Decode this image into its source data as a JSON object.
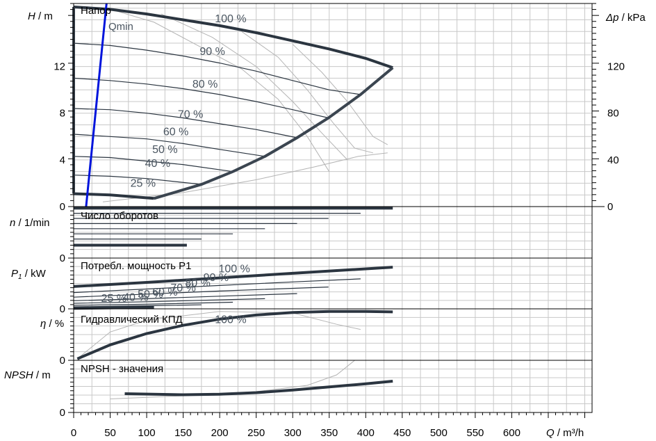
{
  "colors": {
    "grid": "#c8c8c8",
    "axis": "#000000",
    "max_curve": "#3b4550",
    "speed_curve": "#2b3540",
    "efficiency_curve": "#b4b4b4",
    "qmin_line": "#0014dc",
    "curve_label": "#4a5560"
  },
  "x_axis": {
    "label_italic": "Q",
    "label_unit": " / m³/h",
    "ticks": [
      0,
      50,
      100,
      150,
      200,
      250,
      300,
      350,
      400,
      450,
      500,
      550,
      600
    ],
    "range": [
      0,
      710
    ]
  },
  "panels": [
    {
      "key": "head",
      "title": "Напор",
      "y_label_italic": "H",
      "y_label_unit": " / m",
      "ticks": [
        "0",
        "4",
        "8",
        "12"
      ],
      "right_label_italic": "Δp",
      "right_label_unit": " / kPa",
      "right_ticks": [
        "0",
        "40",
        "80",
        "120"
      ],
      "qmin_label": "Qmin"
    },
    {
      "key": "speed",
      "title": "Число оборотов",
      "y_label_italic": "n",
      "y_label_unit": " / 1/min",
      "ticks": [
        "0"
      ]
    },
    {
      "key": "power",
      "title": "Потребл. мощность P1",
      "y_label_italic": "P",
      "y_label_sub": "1",
      "y_label_unit": " / kW",
      "ticks": [
        "0"
      ]
    },
    {
      "key": "efficiency",
      "title": "Гидравлический КПД",
      "y_label_italic": "η",
      "y_label_unit": " / %",
      "ticks": [
        "0"
      ]
    },
    {
      "key": "npsh",
      "title": "NPSH - значения",
      "y_label_italic": "NPSH",
      "y_label_unit": " / m",
      "ticks": [
        "0"
      ]
    }
  ],
  "chart_data": [
    {
      "type": "line",
      "title": "Напор",
      "xlabel": "Q / m³/h",
      "ylabel": "H / m",
      "xlim": [
        0,
        710
      ],
      "ylim": [
        0,
        17
      ],
      "y2label": "Δp / kPa",
      "y2_ticks": [
        0,
        40,
        80,
        120
      ],
      "series": [
        {
          "name": "100 %",
          "x": [
            0,
            50,
            100,
            150,
            200,
            250,
            300,
            350,
            400,
            437
          ],
          "y": [
            17.1,
            16.9,
            16.5,
            16.0,
            15.5,
            14.9,
            14.2,
            13.5,
            12.7,
            11.9
          ]
        },
        {
          "name": "90 %",
          "x": [
            0,
            50,
            100,
            150,
            200,
            250,
            300,
            350,
            393
          ],
          "y": [
            14.0,
            13.8,
            13.4,
            12.9,
            12.3,
            11.6,
            10.8,
            10.0,
            9.6
          ]
        },
        {
          "name": "80 %",
          "x": [
            0,
            50,
            100,
            150,
            200,
            250,
            300,
            349
          ],
          "y": [
            11.0,
            10.8,
            10.5,
            10.1,
            9.6,
            9.0,
            8.3,
            7.6
          ]
        },
        {
          "name": "70 %",
          "x": [
            0,
            50,
            100,
            150,
            200,
            250,
            306
          ],
          "y": [
            8.4,
            8.3,
            8.0,
            7.6,
            7.1,
            6.6,
            5.9
          ]
        },
        {
          "name": "60 %",
          "x": [
            0,
            50,
            100,
            150,
            200,
            262
          ],
          "y": [
            6.2,
            6.0,
            5.8,
            5.4,
            4.9,
            4.3
          ]
        },
        {
          "name": "50 %",
          "x": [
            0,
            50,
            100,
            150,
            218
          ],
          "y": [
            4.3,
            4.2,
            3.9,
            3.6,
            3.0
          ]
        },
        {
          "name": "40 %",
          "x": [
            0,
            50,
            100,
            175
          ],
          "y": [
            2.7,
            2.6,
            2.4,
            1.9
          ]
        },
        {
          "name": "25 %",
          "x": [
            0,
            50,
            110
          ],
          "y": [
            1.1,
            1.0,
            0.7
          ]
        },
        {
          "name": "Qmin",
          "x": [
            17,
            45
          ],
          "y": [
            0,
            17.4
          ]
        }
      ],
      "labels": [
        "100 %",
        "90 %",
        "80 %",
        "70 %",
        "60 %",
        "50 %",
        "40 %",
        "25 %"
      ]
    },
    {
      "type": "line",
      "title": "Число оборотов",
      "ylabel": "n / 1/min",
      "ylim": [
        0,
        1
      ],
      "series": [
        {
          "name": "100 %",
          "x": [
            0,
            437
          ],
          "y": [
            0.97,
            0.97
          ]
        },
        {
          "name": "90 %",
          "x": [
            0,
            393
          ],
          "y": [
            0.87,
            0.87
          ]
        },
        {
          "name": "80 %",
          "x": [
            0,
            349
          ],
          "y": [
            0.77,
            0.77
          ]
        },
        {
          "name": "70 %",
          "x": [
            0,
            306
          ],
          "y": [
            0.67,
            0.67
          ]
        },
        {
          "name": "60 %",
          "x": [
            0,
            262
          ],
          "y": [
            0.57,
            0.57
          ]
        },
        {
          "name": "50 %",
          "x": [
            0,
            218
          ],
          "y": [
            0.47,
            0.47
          ]
        },
        {
          "name": "40 %",
          "x": [
            0,
            175
          ],
          "y": [
            0.37,
            0.37
          ]
        },
        {
          "name": "25 %",
          "x": [
            0,
            155
          ],
          "y": [
            0.25,
            0.25
          ]
        }
      ]
    },
    {
      "type": "line",
      "title": "Потребл. мощность P1",
      "ylabel": "P1 / kW",
      "ylim": [
        0,
        1
      ],
      "series": [
        {
          "name": "100 %",
          "x": [
            0,
            100,
            200,
            300,
            437
          ],
          "y": [
            0.44,
            0.52,
            0.61,
            0.7,
            0.82
          ]
        },
        {
          "name": "90 %",
          "x": [
            0,
            100,
            200,
            300,
            393
          ],
          "y": [
            0.32,
            0.39,
            0.46,
            0.53,
            0.59
          ]
        },
        {
          "name": "80 %",
          "x": [
            0,
            100,
            200,
            349
          ],
          "y": [
            0.23,
            0.29,
            0.35,
            0.43
          ]
        },
        {
          "name": "70 %",
          "x": [
            0,
            100,
            200,
            306
          ],
          "y": [
            0.16,
            0.2,
            0.25,
            0.3
          ]
        },
        {
          "name": "60 %",
          "x": [
            0,
            100,
            262
          ],
          "y": [
            0.11,
            0.14,
            0.2
          ]
        },
        {
          "name": "50 %",
          "x": [
            0,
            100,
            218
          ],
          "y": [
            0.07,
            0.09,
            0.13
          ]
        },
        {
          "name": "40 %",
          "x": [
            0,
            100,
            175
          ],
          "y": [
            0.04,
            0.06,
            0.08
          ]
        },
        {
          "name": "25 %",
          "x": [
            0,
            110
          ],
          "y": [
            0.01,
            0.03
          ]
        }
      ],
      "labels": [
        "100 %",
        "90 %",
        "80 %",
        "70 %",
        "60 %",
        "50 %",
        "40 %",
        "25 %"
      ]
    },
    {
      "type": "line",
      "title": "Гидравлический КПД",
      "ylabel": "η / %",
      "ylim": [
        0,
        1
      ],
      "series": [
        {
          "name": "100 %",
          "x": [
            5,
            50,
            100,
            150,
            200,
            250,
            300,
            350,
            400,
            437
          ],
          "y": [
            0.03,
            0.3,
            0.52,
            0.68,
            0.8,
            0.88,
            0.93,
            0.95,
            0.95,
            0.94
          ]
        }
      ],
      "labels": [
        "100 %"
      ]
    },
    {
      "type": "line",
      "title": "NPSH - значения",
      "ylabel": "NPSH / m",
      "ylim": [
        0,
        1
      ],
      "series": [
        {
          "name": "100 %",
          "x": [
            70,
            150,
            200,
            250,
            300,
            350,
            400,
            437
          ],
          "y": [
            0.36,
            0.34,
            0.35,
            0.38,
            0.43,
            0.49,
            0.55,
            0.6
          ]
        }
      ]
    }
  ]
}
